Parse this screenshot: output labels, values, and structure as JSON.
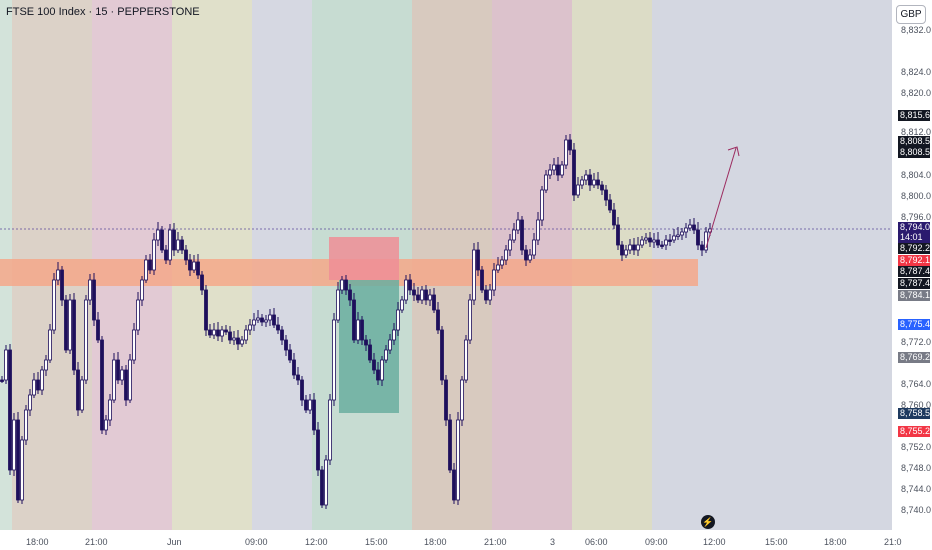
{
  "header": {
    "title": "FTSE 100 Index · 15 · PEPPERSTONE"
  },
  "price_axis": {
    "currency": "GBP",
    "ticks": [
      "8,832.0",
      "8,824.0",
      "8,820.0",
      "8,812.0",
      "8,804.0",
      "8,800.0",
      "8,796.0",
      "8,772.0",
      "8,764.0",
      "8,760.0",
      "8,752.0",
      "8,748.0",
      "8,744.0",
      "8,740.0"
    ],
    "labels": [
      {
        "text": "8,815.6",
        "color": "#131722"
      },
      {
        "text": "8,808.5",
        "color": "#131722"
      },
      {
        "text": "8,808.5",
        "color": "#131722"
      },
      {
        "text": "8,794.0",
        "color": "#2a1a6e"
      },
      {
        "text": "14:01",
        "color": "#2a1a6e"
      },
      {
        "text": "8,792.2",
        "color": "#131722"
      },
      {
        "text": "8,792.1",
        "color": "#f23645"
      },
      {
        "text": "8,787.4",
        "color": "#131722"
      },
      {
        "text": "8,787.4",
        "color": "#131722"
      },
      {
        "text": "8,784.1",
        "color": "#787b86"
      },
      {
        "text": "8,775.4",
        "color": "#2962ff"
      },
      {
        "text": "8,769.2",
        "color": "#787b86"
      },
      {
        "text": "8,758.5",
        "color": "#1e3a5f"
      },
      {
        "text": "8,755.2",
        "color": "#f23645"
      }
    ]
  },
  "time_axis": {
    "ticks": [
      "18:00",
      "21:00",
      "Jun",
      "09:00",
      "12:00",
      "15:00",
      "18:00",
      "21:00",
      "3",
      "06:00",
      "09:00",
      "12:00",
      "15:00",
      "18:00",
      "21:0"
    ]
  },
  "icons": {
    "replay": "lightning-icon"
  },
  "colors": {
    "candle": "#1e0f5c",
    "zone": "#f5a88a",
    "arrow": "#9c2b5f"
  }
}
